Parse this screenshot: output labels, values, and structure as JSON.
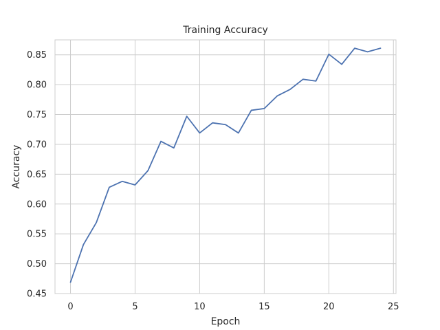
{
  "chart_data": {
    "type": "line",
    "title": "Training Accuracy",
    "xlabel": "Epoch",
    "ylabel": "Accuracy",
    "xlim": [
      -1.2,
      25.2
    ],
    "ylim": [
      0.45,
      0.875
    ],
    "x_ticks": [
      0,
      5,
      10,
      15,
      20,
      25
    ],
    "y_ticks": [
      0.45,
      0.5,
      0.55,
      0.6,
      0.65,
      0.7,
      0.75,
      0.8,
      0.85
    ],
    "x_tick_labels": [
      "0",
      "5",
      "10",
      "15",
      "20",
      "25"
    ],
    "y_tick_labels": [
      "0.45",
      "0.50",
      "0.55",
      "0.60",
      "0.65",
      "0.70",
      "0.75",
      "0.80",
      "0.85"
    ],
    "grid": true,
    "legend": "none",
    "series": [
      {
        "color": "#4c72b0",
        "x": [
          0,
          1,
          2,
          3,
          4,
          5,
          6,
          7,
          8,
          9,
          10,
          11,
          12,
          13,
          14,
          15,
          16,
          17,
          18,
          19,
          20,
          21,
          22,
          23,
          24
        ],
        "y": [
          0.469,
          0.532,
          0.569,
          0.628,
          0.638,
          0.632,
          0.656,
          0.705,
          0.694,
          0.747,
          0.719,
          0.736,
          0.733,
          0.719,
          0.757,
          0.76,
          0.781,
          0.792,
          0.809,
          0.806,
          0.851,
          0.834,
          0.861,
          0.855,
          0.861
        ]
      }
    ]
  }
}
